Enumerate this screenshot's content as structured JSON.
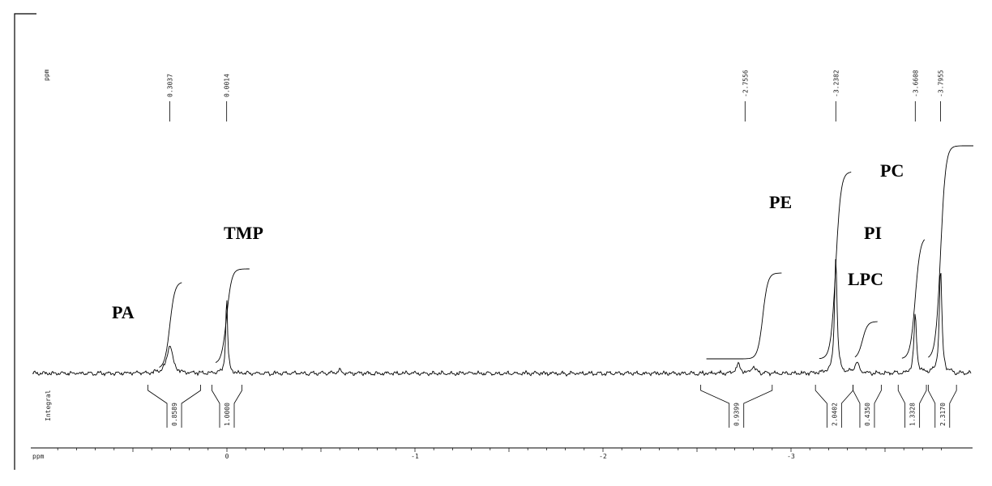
{
  "chart_data": {
    "type": "line",
    "title": "",
    "xlabel": "ppm",
    "ylabel": "",
    "x_reversed": true,
    "xlim": [
      0.9,
      -3.9
    ],
    "x_ticks": [
      "0",
      "-1",
      "-2",
      "-3"
    ],
    "peak_list_label": "ppm",
    "peak_list": [
      "0.3037",
      "0.0014",
      "-2.7556",
      "-3.2382",
      "-3.6608",
      "-3.7955"
    ],
    "integral_label": "Integral",
    "integrals": [
      {
        "value": "0.8589",
        "range": [
          0.42,
          0.14
        ]
      },
      {
        "value": "1.0000",
        "range": [
          0.08,
          -0.08
        ]
      },
      {
        "value": "0.9399",
        "range": [
          -2.52,
          -2.9
        ]
      },
      {
        "value": "2.0402",
        "range": [
          -3.13,
          -3.33
        ]
      },
      {
        "value": "0.4350",
        "range": [
          -3.33,
          -3.48
        ]
      },
      {
        "value": "1.3328",
        "range": [
          -3.57,
          -3.72
        ]
      },
      {
        "value": "2.3170",
        "range": [
          -3.73,
          -3.88
        ]
      }
    ],
    "peaks": [
      {
        "ppm": 0.3037,
        "height": 0.21,
        "width": 0.018
      },
      {
        "ppm": 0.0014,
        "height": 0.55,
        "width": 0.006
      },
      {
        "ppm": -0.6,
        "height": 0.03,
        "width": 0.008
      },
      {
        "ppm": -2.72,
        "height": 0.06,
        "width": 0.015
      },
      {
        "ppm": -2.8,
        "height": 0.05,
        "width": 0.012
      },
      {
        "ppm": -3.2382,
        "height": 0.86,
        "width": 0.008
      },
      {
        "ppm": -3.35,
        "height": 0.08,
        "width": 0.012
      },
      {
        "ppm": -3.6608,
        "height": 0.43,
        "width": 0.008
      },
      {
        "ppm": -3.7955,
        "height": 0.77,
        "width": 0.008
      }
    ],
    "annotations": [
      {
        "text": "PA",
        "ppm": 0.52
      },
      {
        "text": "TMP",
        "ppm": 0.0
      },
      {
        "text": "PE",
        "ppm": -2.92
      },
      {
        "text": "PC",
        "ppm": -3.55
      },
      {
        "text": "PI",
        "ppm": -3.48
      },
      {
        "text": "LPC",
        "ppm": -3.46
      }
    ]
  }
}
